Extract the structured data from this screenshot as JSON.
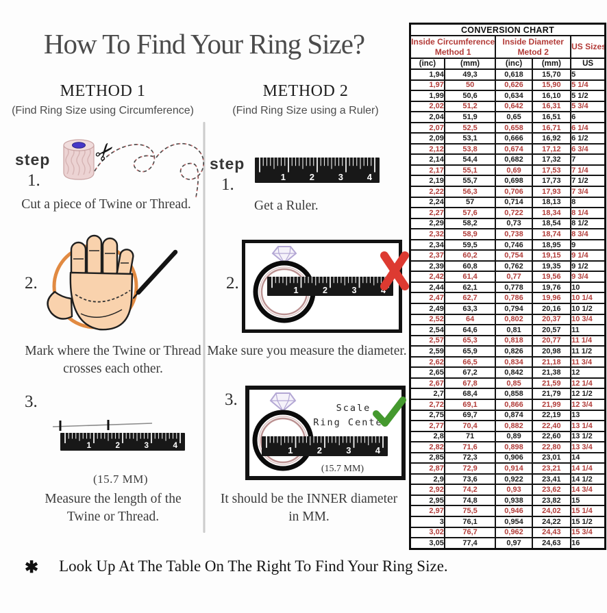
{
  "page": {
    "title": "How To Find Your Ring Size?",
    "footnote_symbol": "✱",
    "footnote": "Look Up At The Table On The Right To Find Your Ring Size."
  },
  "colors": {
    "table-red": "#b23a37",
    "row-red": "#b13c39",
    "check-green": "#44992e",
    "x-red": "#dd3a31",
    "circle-orange": "#e18a42",
    "ring-rose": "#bb9191",
    "diamond-lavender": "#b3a7d4"
  },
  "ruler_numbers": [
    "1",
    "2",
    "3",
    "4"
  ],
  "method1": {
    "heading": "METHOD 1",
    "subheading": "(Find Ring Size using Circumference)",
    "step_label": "step",
    "steps": [
      {
        "num": "1.",
        "lines": [
          "Cut a piece of  Twine or Thread."
        ]
      },
      {
        "num": "2.",
        "lines": [
          "Mark where the Twine or Thread",
          "crosses each other."
        ]
      },
      {
        "num": "3.",
        "measurement": "(15.7 MM)",
        "lines": [
          "Measure the length of the",
          "Twine or Thread."
        ]
      }
    ]
  },
  "method2": {
    "heading": "METHOD 2",
    "subheading": "(Find Ring Size using a Ruler)",
    "step_label": "step",
    "annotation_line1": "Scale",
    "annotation_line2": "Ring Center",
    "steps": [
      {
        "num": "1.",
        "lines": [
          "Get a Ruler."
        ]
      },
      {
        "num": "2.",
        "lines": [
          "Make sure you measure the diameter."
        ]
      },
      {
        "num": "3.",
        "measurement": "(15.7 MM)",
        "lines": [
          "It should be the INNER diameter",
          "in MM."
        ]
      }
    ]
  },
  "conversion_chart": {
    "title": "CONVERSION CHART",
    "group_headers": [
      {
        "line1": "Inside Circumference",
        "line2": "Method 1"
      },
      {
        "line1": "Inside Diameter",
        "line2": "Metod 2"
      },
      {
        "line1": "US Sizes",
        "line2": ""
      }
    ],
    "sub_headers": [
      "(inc)",
      "(mm)",
      "(inc)",
      "(mm)",
      "US"
    ],
    "rows": [
      [
        "1,94",
        "49,3",
        "0,618",
        "15,70",
        "5"
      ],
      [
        "1,97",
        "50",
        "0,626",
        "15,90",
        "5 1/4"
      ],
      [
        "1,99",
        "50,6",
        "0,634",
        "16,10",
        "5 1/2"
      ],
      [
        "2,02",
        "51,2",
        "0,642",
        "16,31",
        "5 3/4"
      ],
      [
        "2,04",
        "51,9",
        "0,65",
        "16,51",
        "6"
      ],
      [
        "2,07",
        "52,5",
        "0,658",
        "16,71",
        "6 1/4"
      ],
      [
        "2,09",
        "53,1",
        "0,666",
        "16,92",
        "6 1/2"
      ],
      [
        "2,12",
        "53,8",
        "0,674",
        "17,12",
        "6 3/4"
      ],
      [
        "2,14",
        "54,4",
        "0,682",
        "17,32",
        "7"
      ],
      [
        "2,17",
        "55,1",
        "0,69",
        "17,53",
        "7 1/4"
      ],
      [
        "2,19",
        "55,7",
        "0,698",
        "17,73",
        "7 1/2"
      ],
      [
        "2,22",
        "56,3",
        "0,706",
        "17,93",
        "7 3/4"
      ],
      [
        "2,24",
        "57",
        "0,714",
        "18,13",
        "8"
      ],
      [
        "2,27",
        "57,6",
        "0,722",
        "18,34",
        "8 1/4"
      ],
      [
        "2,29",
        "58,2",
        "0,73",
        "18,54",
        "8 1/2"
      ],
      [
        "2,32",
        "58,9",
        "0,738",
        "18,74",
        "8 3/4"
      ],
      [
        "2,34",
        "59,5",
        "0,746",
        "18,95",
        "9"
      ],
      [
        "2,37",
        "60,2",
        "0,754",
        "19,15",
        "9 1/4"
      ],
      [
        "2,39",
        "60,8",
        "0,762",
        "19,35",
        "9 1/2"
      ],
      [
        "2,42",
        "61,4",
        "0,77",
        "19,56",
        "9 3/4"
      ],
      [
        "2,44",
        "62,1",
        "0,778",
        "19,76",
        "10"
      ],
      [
        "2,47",
        "62,7",
        "0,786",
        "19,96",
        "10 1/4"
      ],
      [
        "2,49",
        "63,3",
        "0,794",
        "20,16",
        "10 1/2"
      ],
      [
        "2,52",
        "64",
        "0,802",
        "20,37",
        "10 3/4"
      ],
      [
        "2,54",
        "64,6",
        "0,81",
        "20,57",
        "11"
      ],
      [
        "2,57",
        "65,3",
        "0,818",
        "20,77",
        "11 1/4"
      ],
      [
        "2,59",
        "65,9",
        "0,826",
        "20,98",
        "11 1/2"
      ],
      [
        "2,62",
        "66,5",
        "0,834",
        "21,18",
        "11 3/4"
      ],
      [
        "2,65",
        "67,2",
        "0,842",
        "21,38",
        "12"
      ],
      [
        "2,67",
        "67,8",
        "0,85",
        "21,59",
        "12 1/4"
      ],
      [
        "2,7",
        "68,4",
        "0,858",
        "21,79",
        "12 1/2"
      ],
      [
        "2,72",
        "69,1",
        "0,866",
        "21,99",
        "12 3/4"
      ],
      [
        "2,75",
        "69,7",
        "0,874",
        "22,19",
        "13"
      ],
      [
        "2,77",
        "70,4",
        "0,882",
        "22,40",
        "13 1/4"
      ],
      [
        "2,8",
        "71",
        "0,89",
        "22,60",
        "13 1/2"
      ],
      [
        "2,82",
        "71,6",
        "0,898",
        "22,80",
        "13 3/4"
      ],
      [
        "2,85",
        "72,3",
        "0,906",
        "23,01",
        "14"
      ],
      [
        "2,87",
        "72,9",
        "0,914",
        "23,21",
        "14 1/4"
      ],
      [
        "2,9",
        "73,6",
        "0,922",
        "23,41",
        "14 1/2"
      ],
      [
        "2,92",
        "74,2",
        "0,93",
        "23,62",
        "14 3/4"
      ],
      [
        "2,95",
        "74,8",
        "0,938",
        "23,82",
        "15"
      ],
      [
        "2,97",
        "75,5",
        "0,946",
        "24,02",
        "15 1/4"
      ],
      [
        "3",
        "76,1",
        "0,954",
        "24,22",
        "15 1/2"
      ],
      [
        "3,02",
        "76,7",
        "0,962",
        "24,43",
        "15 3/4"
      ],
      [
        "3,05",
        "77,4",
        "0,97",
        "24,63",
        "16"
      ]
    ]
  }
}
